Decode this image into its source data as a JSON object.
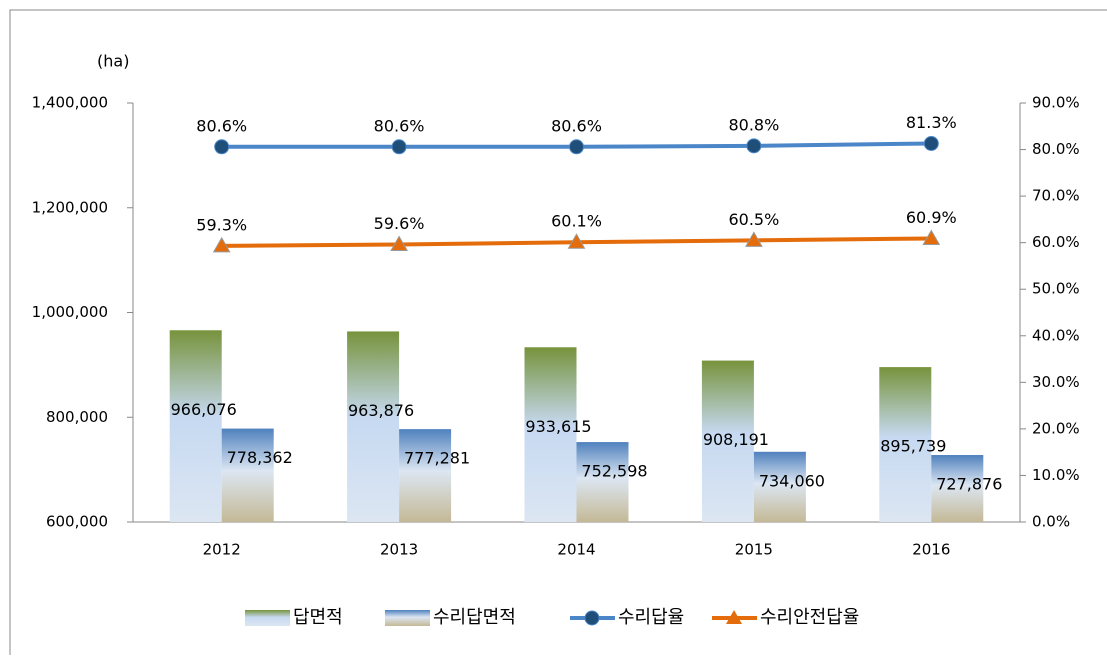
{
  "chart_data": {
    "type": "bar-line",
    "unit_label": "(ha)",
    "categories": [
      "2012",
      "2013",
      "2014",
      "2015",
      "2016"
    ],
    "series": [
      {
        "name": "답면적",
        "type": "bar",
        "color": "#77933c",
        "values": [
          966076,
          963876,
          933615,
          908191,
          895739
        ],
        "value_labels": [
          "966,076",
          "963,876",
          "933,615",
          "908,191",
          "895,739"
        ]
      },
      {
        "name": "수리답면적",
        "type": "bar",
        "color": "#4f81bd",
        "values": [
          778362,
          777281,
          752598,
          734060,
          727876
        ],
        "value_labels": [
          "778,362",
          "777,281",
          "752,598",
          "734,060",
          "727,876"
        ]
      },
      {
        "name": "수리답율",
        "type": "line",
        "axis": "y2",
        "marker": "circle",
        "color": "#4a86c8",
        "values": [
          80.6,
          80.6,
          80.6,
          80.8,
          81.3
        ],
        "value_labels": [
          "80.6%",
          "80.6%",
          "80.6%",
          "80.8%",
          "81.3%"
        ]
      },
      {
        "name": "수리안전답율",
        "type": "line",
        "axis": "y2",
        "marker": "triangle",
        "color": "#e46c0a",
        "values": [
          59.3,
          59.6,
          60.1,
          60.5,
          60.9
        ],
        "value_labels": [
          "59.3%",
          "59.6%",
          "60.1%",
          "60.5%",
          "60.9%"
        ]
      }
    ],
    "ylim": [
      600000,
      1400000
    ],
    "yticks": [
      {
        "value": 600000,
        "label": "600,000"
      },
      {
        "value": 800000,
        "label": "800,000"
      },
      {
        "value": 1000000,
        "label": "1,000,000"
      },
      {
        "value": 1200000,
        "label": "1,200,000"
      },
      {
        "value": 1400000,
        "label": "1,400,000"
      }
    ],
    "y2lim": [
      0,
      90
    ],
    "y2ticks": [
      {
        "value": 0,
        "label": "0.0%"
      },
      {
        "value": 10,
        "label": "10.0%"
      },
      {
        "value": 20,
        "label": "20.0%"
      },
      {
        "value": 30,
        "label": "30.0%"
      },
      {
        "value": 40,
        "label": "40.0%"
      },
      {
        "value": 50,
        "label": "50.0%"
      },
      {
        "value": 60,
        "label": "60.0%"
      },
      {
        "value": 70,
        "label": "70.0%"
      },
      {
        "value": 80,
        "label": "80.0%"
      },
      {
        "value": 90,
        "label": "90.0%"
      }
    ]
  }
}
